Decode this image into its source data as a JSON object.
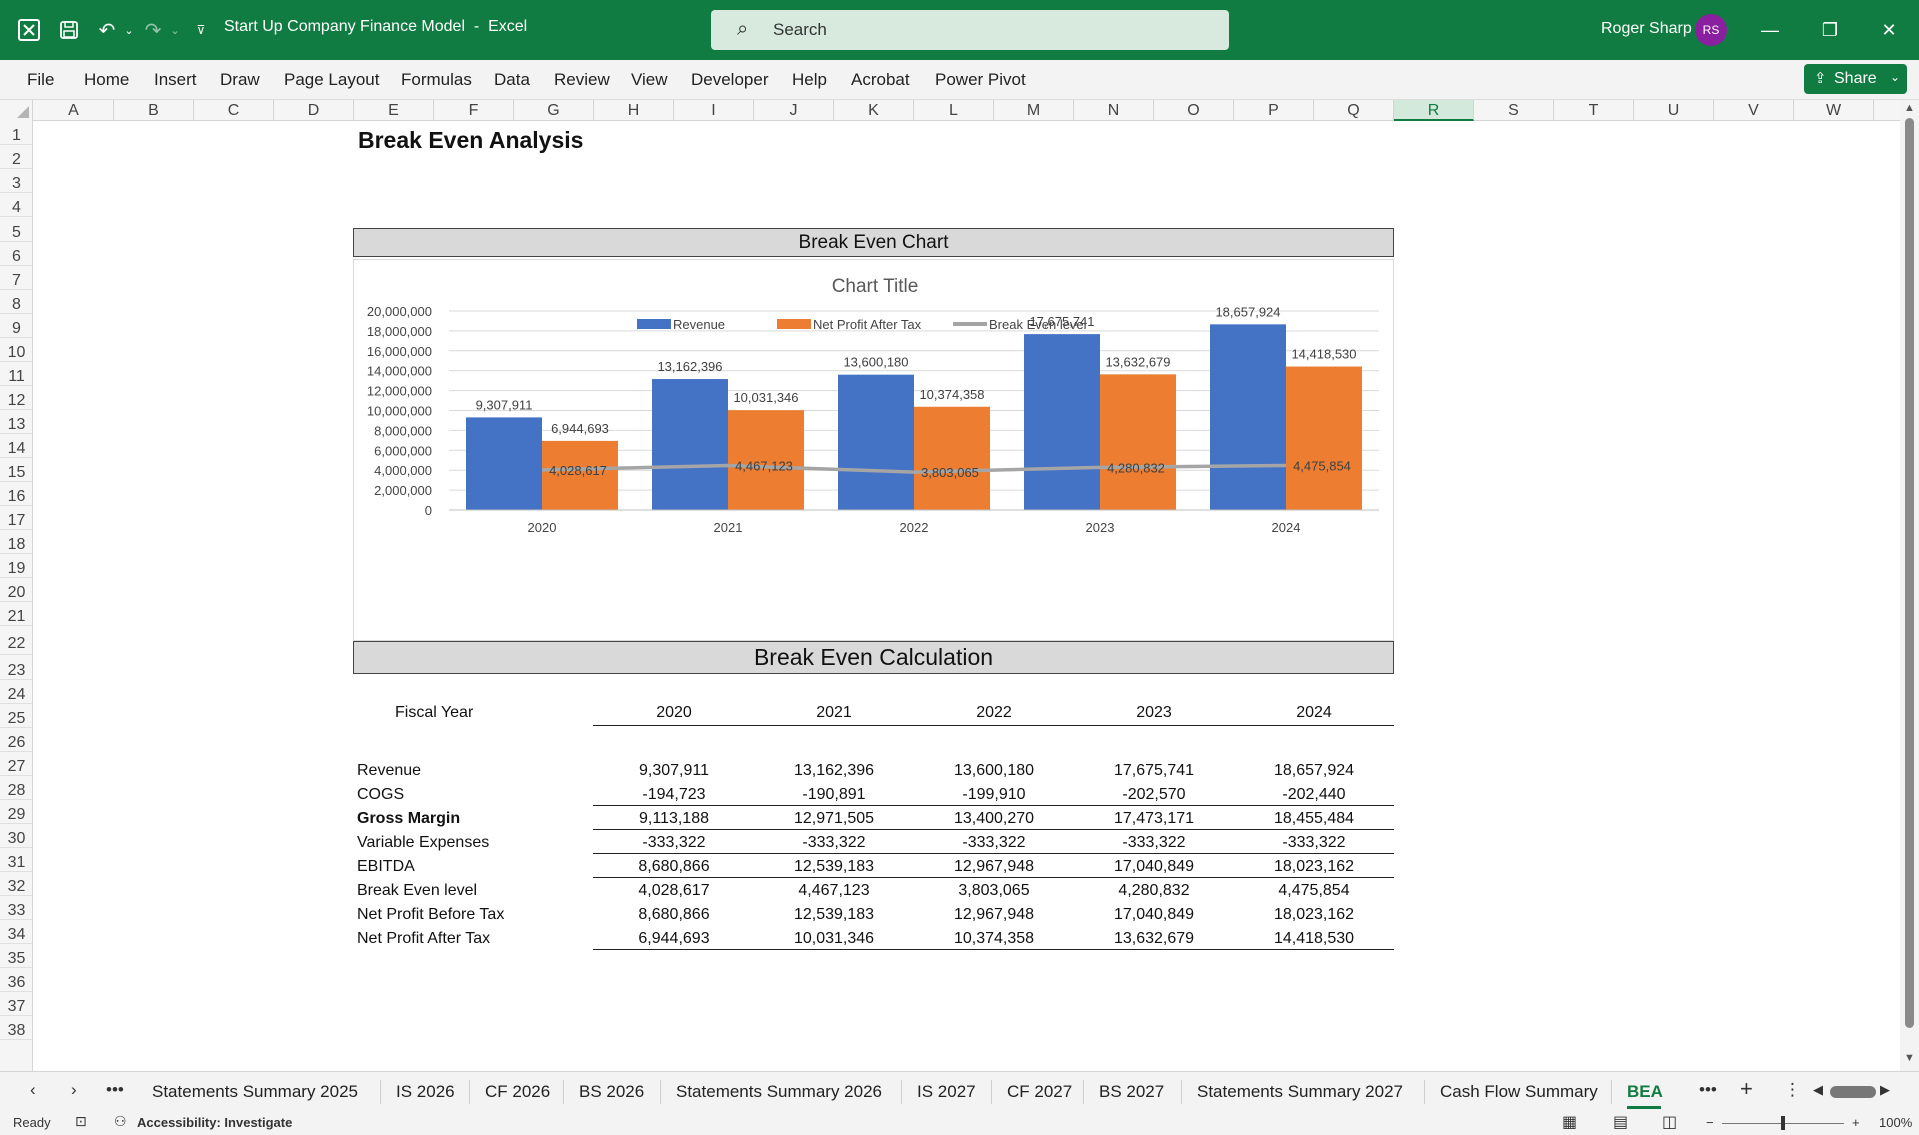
{
  "titlebar": {
    "doc_title": "Start Up Company Finance Model  -  Excel",
    "search_placeholder": "Search",
    "user_name": "Roger Sharp",
    "user_initials": "RS"
  },
  "ribbon": {
    "tabs": [
      "File",
      "Home",
      "Insert",
      "Draw",
      "Page Layout",
      "Formulas",
      "Data",
      "Review",
      "View",
      "Developer",
      "Help",
      "Acrobat",
      "Power Pivot"
    ],
    "share_label": "Share"
  },
  "grid": {
    "columns": [
      "A",
      "B",
      "C",
      "D",
      "E",
      "F",
      "G",
      "H",
      "I",
      "J",
      "K",
      "L",
      "M",
      "N",
      "O",
      "P",
      "Q",
      "R",
      "S",
      "T",
      "U",
      "V",
      "W"
    ],
    "selected_column": "R",
    "rows": [
      "1",
      "2",
      "3",
      "4",
      "5",
      "6",
      "7",
      "8",
      "9",
      "10",
      "11",
      "12",
      "13",
      "14",
      "15",
      "16",
      "17",
      "18",
      "19",
      "20",
      "21",
      "22",
      "23",
      "24",
      "25",
      "26",
      "27",
      "28",
      "29",
      "30",
      "31",
      "32",
      "33",
      "34",
      "35",
      "36",
      "37",
      "38"
    ]
  },
  "sheet": {
    "title": "Break Even Analysis",
    "chart_banner": "Break Even Chart",
    "calc_banner": "Break Even Calculation",
    "fiscal_year_label": "Fiscal Year",
    "years": [
      "2020",
      "2021",
      "2022",
      "2023",
      "2024"
    ],
    "table": [
      {
        "label": "Revenue",
        "bold": false,
        "values": [
          "9,307,911",
          "13,162,396",
          "13,600,180",
          "17,675,741",
          "18,657,924"
        ]
      },
      {
        "label": "COGS",
        "bold": false,
        "values": [
          "-194,723",
          "-190,891",
          "-199,910",
          "-202,570",
          "-202,440"
        ]
      },
      {
        "label": "Gross Margin",
        "bold": true,
        "values": [
          "9,113,188",
          "12,971,505",
          "13,400,270",
          "17,473,171",
          "18,455,484"
        ]
      },
      {
        "label": "Variable Expenses",
        "bold": false,
        "values": [
          "-333,322",
          "-333,322",
          "-333,322",
          "-333,322",
          "-333,322"
        ]
      },
      {
        "label": "EBITDA",
        "bold": false,
        "values": [
          "8,680,866",
          "12,539,183",
          "12,967,948",
          "17,040,849",
          "18,023,162"
        ]
      },
      {
        "label": "Break Even level",
        "bold": false,
        "values": [
          "4,028,617",
          "4,467,123",
          "3,803,065",
          "4,280,832",
          "4,475,854"
        ]
      },
      {
        "label": "Net Profit Before Tax",
        "bold": false,
        "values": [
          "8,680,866",
          "12,539,183",
          "12,967,948",
          "17,040,849",
          "18,023,162"
        ]
      },
      {
        "label": "Net Profit After Tax",
        "bold": false,
        "values": [
          "6,944,693",
          "10,031,346",
          "10,374,358",
          "13,632,679",
          "14,418,530"
        ]
      }
    ]
  },
  "chart_data": {
    "type": "bar",
    "title": "Chart Title",
    "categories": [
      "2020",
      "2021",
      "2022",
      "2023",
      "2024"
    ],
    "series": [
      {
        "name": "Revenue",
        "type": "bar",
        "color": "#4472c4",
        "values": [
          9307911,
          13162396,
          13600180,
          17675741,
          18657924
        ],
        "labels": [
          "9,307,911",
          "13,162,396",
          "13,600,180",
          "17,675,741",
          "18,657,924"
        ]
      },
      {
        "name": "Net Profit After Tax",
        "type": "bar",
        "color": "#ed7d31",
        "values": [
          6944693,
          10031346,
          10374358,
          13632679,
          14418530
        ],
        "labels": [
          "6,944,693",
          "10,031,346",
          "10,374,358",
          "13,632,679",
          "14,418,530"
        ]
      },
      {
        "name": "Break Even level",
        "type": "line",
        "color": "#a5a5a5",
        "values": [
          4028617,
          4467123,
          3803065,
          4280832,
          4475854
        ],
        "labels": [
          "4,028,617",
          "4,467,123",
          "3,803,065",
          "4,280,832",
          "4,475,854"
        ]
      }
    ],
    "ylim": [
      0,
      20000000
    ],
    "yticks": [
      "0",
      "2,000,000",
      "4,000,000",
      "6,000,000",
      "8,000,000",
      "10,000,000",
      "12,000,000",
      "14,000,000",
      "16,000,000",
      "18,000,000",
      "20,000,000"
    ],
    "legend": "top",
    "grid": true
  },
  "sheet_tabs": {
    "tabs": [
      "Statements Summary 2025",
      "IS 2026",
      "CF 2026",
      "BS 2026",
      "Statements Summary 2026",
      "IS 2027",
      "CF 2027",
      "BS 2027",
      "Statements Summary 2027",
      "Cash Flow Summary",
      "BEA"
    ],
    "active": "BEA"
  },
  "statusbar": {
    "ready": "Ready",
    "accessibility": "Accessibility: Investigate",
    "zoom": "100%"
  }
}
